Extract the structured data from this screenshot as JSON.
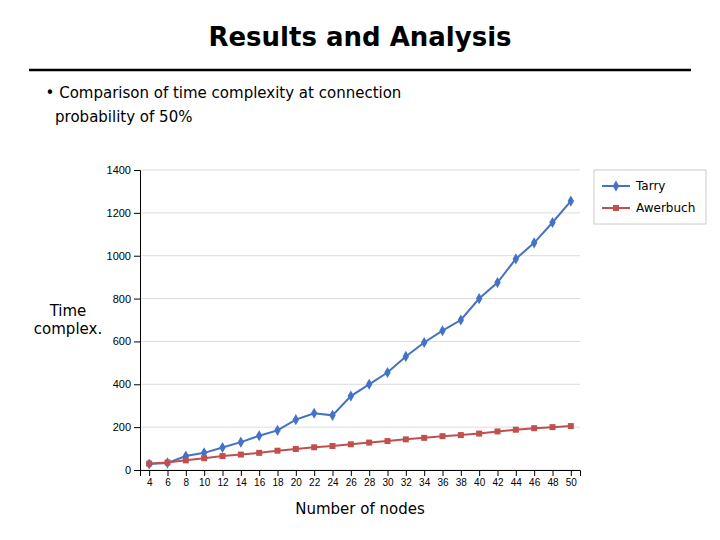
{
  "chart_data": {
    "type": "line",
    "title": "Results and Analysis",
    "subtitle": [
      "  • Comparison of time complexity at connection",
      "    probability of 50%"
    ],
    "xlabel": "Number of nodes",
    "ylabel": "Time\ncomplex.",
    "x": [
      4,
      6,
      8,
      10,
      12,
      14,
      16,
      18,
      20,
      22,
      24,
      26,
      28,
      30,
      32,
      34,
      36,
      38,
      40,
      42,
      44,
      46,
      48,
      50
    ],
    "series": [
      {
        "name": "Tarry",
        "color": "#4472C4",
        "marker": "diamond",
        "values": [
          28,
          33,
          65,
          80,
          105,
          130,
          160,
          185,
          235,
          265,
          255,
          345,
          400,
          455,
          530,
          595,
          650,
          700,
          800,
          875,
          985,
          1060,
          1155,
          1255
        ]
      },
      {
        "name": "Awerbuch",
        "color": "#C0504D",
        "marker": "square",
        "values": [
          30,
          35,
          45,
          55,
          65,
          72,
          80,
          90,
          98,
          106,
          112,
          120,
          128,
          135,
          143,
          150,
          158,
          163,
          170,
          180,
          188,
          195,
          200,
          205
        ]
      }
    ],
    "xlim": [
      3,
      51
    ],
    "xticks": [
      4,
      6,
      8,
      10,
      12,
      14,
      16,
      18,
      20,
      22,
      24,
      26,
      28,
      30,
      32,
      34,
      36,
      38,
      40,
      42,
      44,
      46,
      48,
      50
    ],
    "ylim": [
      0,
      1400
    ],
    "yticks": [
      0,
      200,
      400,
      600,
      800,
      1000,
      1200,
      1400
    ],
    "grid": true,
    "legend": "right"
  }
}
